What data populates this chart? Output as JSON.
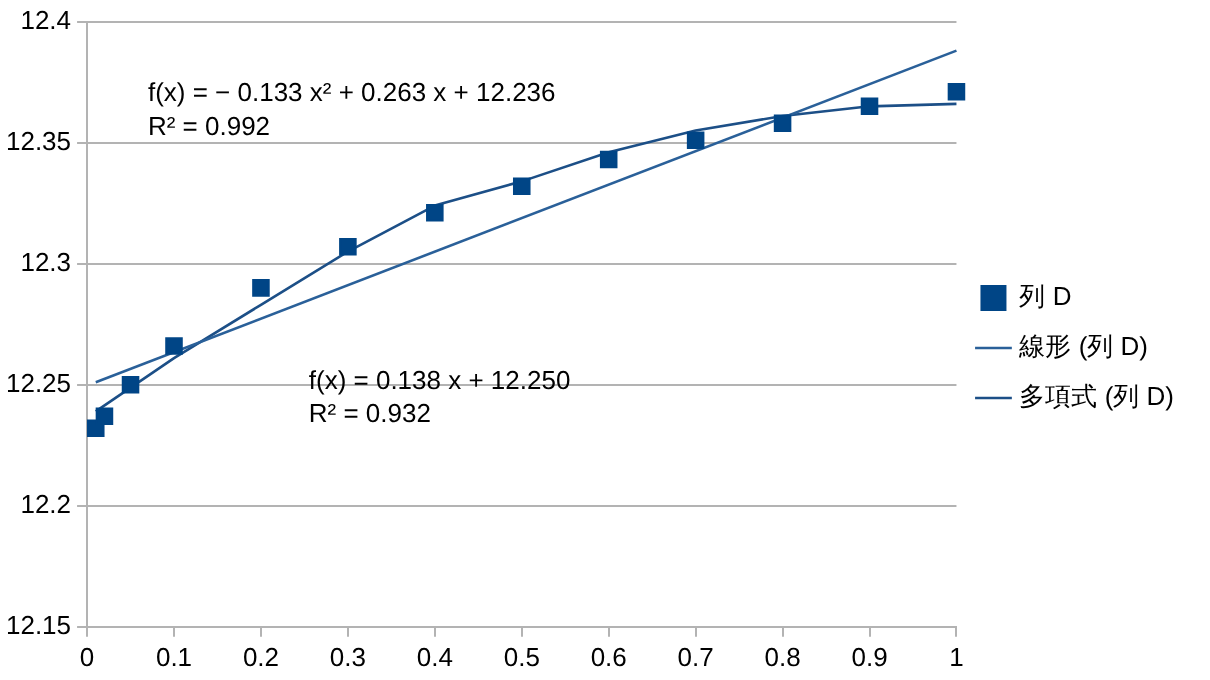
{
  "chart_data": {
    "type": "scatter",
    "xlim": [
      0,
      1
    ],
    "xticks": [
      0,
      0.1,
      0.2,
      0.3,
      0.4,
      0.5,
      0.6,
      0.7,
      0.8,
      0.9,
      1
    ],
    "ylim": [
      12.15,
      12.4
    ],
    "yticks": [
      12.15,
      12.2,
      12.25,
      12.3,
      12.35,
      12.4
    ],
    "grid": "y",
    "legend": "right",
    "marker": "square",
    "series": [
      {
        "name": "列 D",
        "color": "#004586",
        "x": [
          0.01,
          0.02,
          0.05,
          0.1,
          0.2,
          0.3,
          0.4,
          0.5,
          0.6,
          0.7,
          0.8,
          0.9,
          1
        ],
        "values": [
          12.232,
          12.237,
          12.25,
          12.266,
          12.29,
          12.307,
          12.321,
          12.332,
          12.343,
          12.351,
          12.358,
          12.365,
          12.371
        ]
      },
      {
        "name": "線形 (列 D)",
        "type": "line",
        "marker": "none",
        "color": "#2a6099",
        "x": [
          0.01,
          1
        ],
        "values": [
          12.251,
          12.388
        ]
      },
      {
        "name": "多項式 (列 D)",
        "type": "line",
        "marker": "none",
        "color": "#1c4f87",
        "x": [
          0.01,
          0.1,
          0.2,
          0.3,
          0.4,
          0.5,
          0.6,
          0.7,
          0.8,
          0.9,
          1
        ],
        "values": [
          12.239,
          12.261,
          12.283,
          12.305,
          12.324,
          12.334,
          12.346,
          12.355,
          12.361,
          12.365,
          12.366
        ]
      }
    ],
    "annotations": [
      "f(x) = − 0.133 x² + 0.263 x + 12.236",
      "R² = 0.992",
      "f(x) = 0.138 x + 12.250",
      "R² = 0.932"
    ]
  }
}
